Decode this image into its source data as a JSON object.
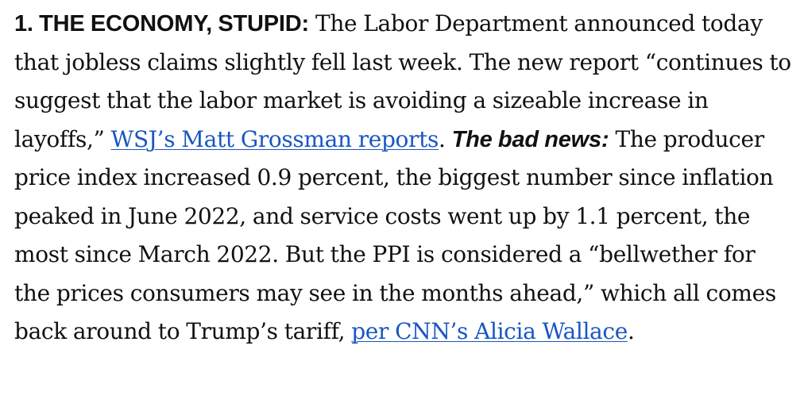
{
  "heading": "1. THE ECONOMY, STUPID:",
  "text1": " The Labor Department announced today that jobless claims slightly fell last week. The new report “continues to suggest that the labor market is avoiding a sizeable increase in layoffs,” ",
  "link1": "WSJ’s Matt Grossman reports",
  "text2": ". ",
  "bad_news_label": "The bad news:",
  "text3": " The producer price index increased 0.9 percent, the biggest number since inflation peaked in June 2022, and service costs went up by 1.1 percent, the most since March 2022. But the PPI is considered a “bellwether for the prices consumers may see in the months ahead,” which all comes back around to Trump’s tariff, ",
  "link2": "per CNN’s Alicia Wallace",
  "text4": "."
}
